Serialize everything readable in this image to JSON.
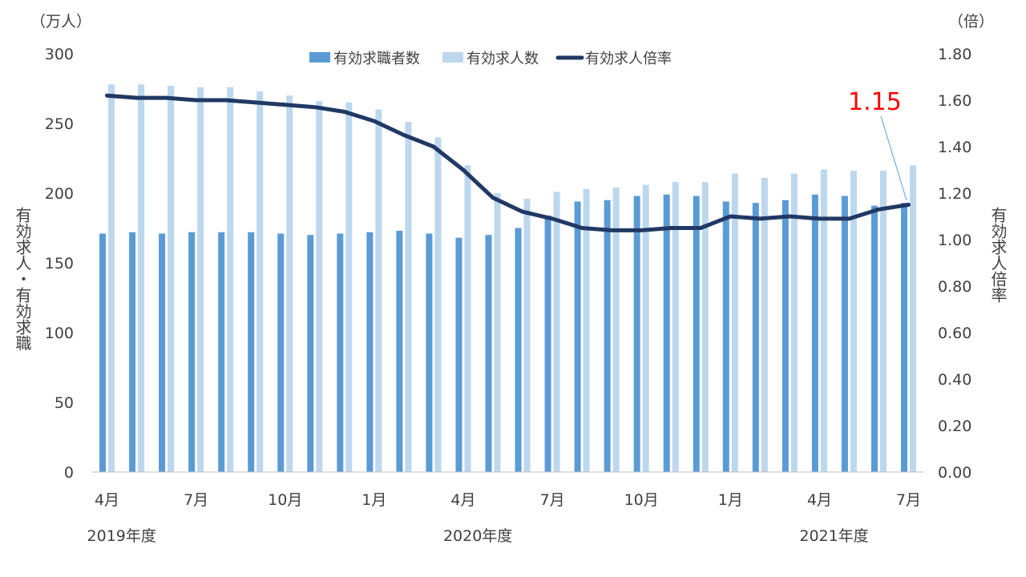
{
  "chart_data": {
    "type": "bar",
    "categories": [
      "4月",
      "5月",
      "6月",
      "7月",
      "8月",
      "9月",
      "10月",
      "11月",
      "12月",
      "1月",
      "2月",
      "3月",
      "4月",
      "5月",
      "6月",
      "7月",
      "8月",
      "9月",
      "10月",
      "11月",
      "12月",
      "1月",
      "2月",
      "3月",
      "4月",
      "5月",
      "6月",
      "7月"
    ],
    "category_labels": [
      "4月",
      "",
      "",
      "7月",
      "",
      "",
      "10月",
      "",
      "",
      "1月",
      "",
      "",
      "4月",
      "",
      "",
      "7月",
      "",
      "",
      "10月",
      "",
      "",
      "1月",
      "",
      "",
      "4月",
      "",
      "",
      "7月"
    ],
    "fiscal_years": [
      {
        "label": "2019年度",
        "start_index": 0
      },
      {
        "label": "2020年度",
        "start_index": 12
      },
      {
        "label": "2021年度",
        "start_index": 24
      }
    ],
    "series": [
      {
        "name": "有効求職者数",
        "type": "bar",
        "axis": "left",
        "color": "#5b9bd5",
        "values": [
          171,
          172,
          171,
          172,
          172,
          172,
          171,
          170,
          171,
          172,
          173,
          171,
          168,
          170,
          175,
          184,
          194,
          195,
          198,
          199,
          198,
          194,
          193,
          195,
          199,
          198,
          191,
          193
        ]
      },
      {
        "name": "有効求人数",
        "type": "bar",
        "axis": "left",
        "color": "#bdd7ee",
        "values": [
          278,
          278,
          277,
          276,
          276,
          273,
          270,
          266,
          265,
          260,
          251,
          240,
          220,
          200,
          196,
          201,
          203,
          204,
          206,
          208,
          208,
          214,
          211,
          214,
          217,
          216,
          216,
          220
        ]
      },
      {
        "name": "有効求人倍率",
        "type": "line",
        "axis": "right",
        "color": "#203864",
        "values": [
          1.62,
          1.61,
          1.61,
          1.6,
          1.6,
          1.59,
          1.58,
          1.57,
          1.55,
          1.51,
          1.45,
          1.4,
          1.3,
          1.18,
          1.12,
          1.09,
          1.05,
          1.04,
          1.04,
          1.05,
          1.05,
          1.1,
          1.09,
          1.1,
          1.09,
          1.09,
          1.13,
          1.15
        ]
      }
    ],
    "y_left": {
      "unit": "（万人）",
      "label": "有効求人・有効求職",
      "min": 0,
      "max": 300,
      "step": 50,
      "ticks": [
        "0",
        "50",
        "100",
        "150",
        "200",
        "250",
        "300"
      ]
    },
    "y_right": {
      "unit": "（倍）",
      "label": "有効求人倍率",
      "min": 0,
      "max": 1.8,
      "step": 0.2,
      "ticks": [
        "0.00",
        "0.20",
        "0.40",
        "0.60",
        "0.80",
        "1.00",
        "1.20",
        "1.40",
        "1.60",
        "1.80"
      ]
    },
    "annotation": {
      "text": "1.15",
      "color": "#ff0000",
      "index": 27
    },
    "legend_position": "top",
    "grid": false
  }
}
